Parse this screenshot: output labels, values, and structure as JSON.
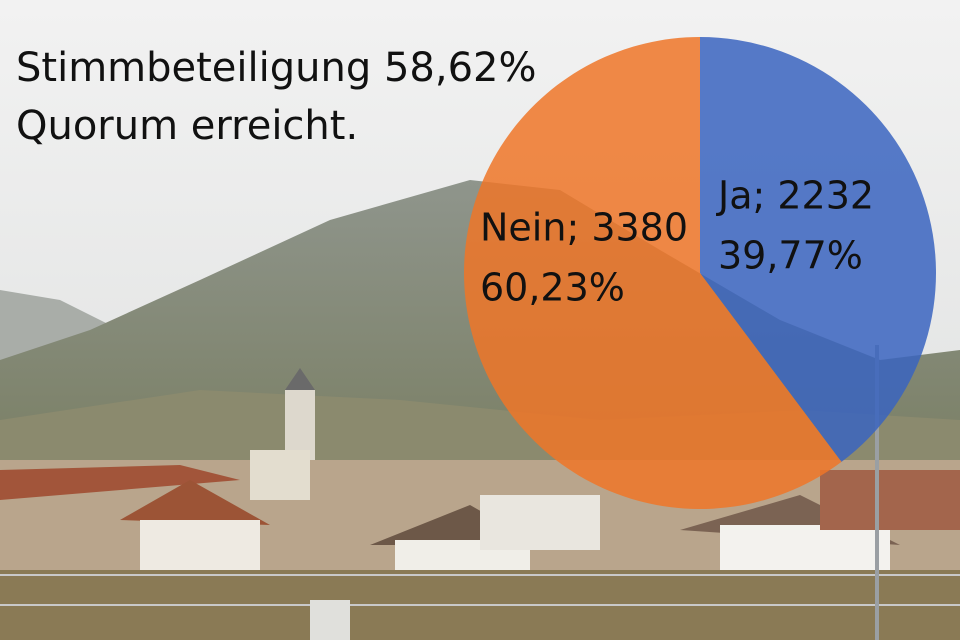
{
  "chart_data": {
    "type": "pie",
    "title": "Stimmbeteiligung 58,62%",
    "subtitle": "Quorum erreicht.",
    "categories": [
      "Ja",
      "Nein"
    ],
    "values": [
      2232,
      3380
    ],
    "value_labels": [
      "Ja; 2232",
      "Nein; 3380"
    ],
    "percents": [
      39.77,
      60.23
    ],
    "percent_labels": [
      "39,77%",
      "60,23%"
    ],
    "colors": [
      "#3a64c0",
      "#ee7628"
    ]
  }
}
